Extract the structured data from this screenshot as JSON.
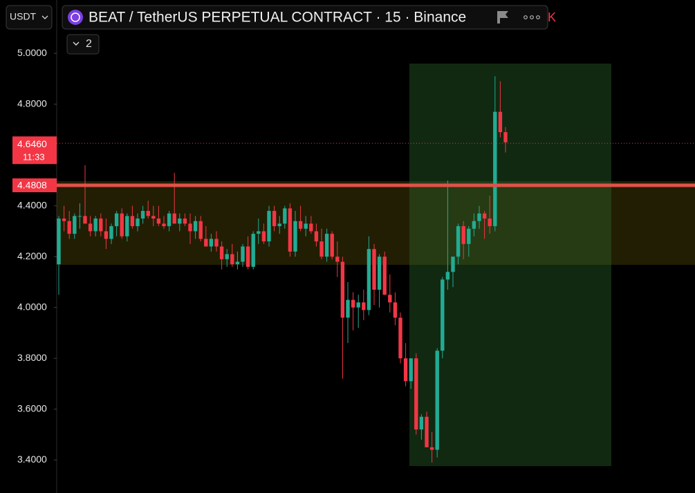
{
  "ui": {
    "quote_currency": "USDT",
    "symbol_title": "BEAT / TetherUS PERPETUAL CONTRACT · 15 · Binance",
    "indicator_count": "2",
    "cut_text": "K",
    "countdown": "11:33"
  },
  "chart_data": {
    "type": "candlestick",
    "ylim": [
      3.27,
      5.21
    ],
    "yticks": [
      {
        "value": 3.4,
        "label": "3.4000"
      },
      {
        "value": 3.6,
        "label": "3.6000"
      },
      {
        "value": 3.8,
        "label": "3.8000"
      },
      {
        "value": 4.0,
        "label": "4.0000"
      },
      {
        "value": 4.2,
        "label": "4.2000"
      },
      {
        "value": 4.4,
        "label": "4.4000"
      },
      {
        "value": 4.8,
        "label": "4.8000"
      },
      {
        "value": 5.0,
        "label": "5.0000"
      }
    ],
    "up_color": "#22ab94",
    "down_color": "#f23645",
    "last_price": {
      "value": 4.646,
      "label": "4.6460"
    },
    "level_line": {
      "value": 4.4808,
      "label": "4.4808"
    },
    "open": [
      4.17,
      4.35,
      4.34,
      4.29,
      4.36,
      4.36,
      4.33,
      4.3,
      4.35,
      4.3,
      4.27,
      4.32,
      4.37,
      4.28,
      4.36,
      4.32,
      4.35,
      4.38,
      4.36,
      4.35,
      4.33,
      4.32,
      4.37,
      4.33,
      4.35,
      4.33,
      4.3,
      4.34,
      4.27,
      4.24,
      4.27,
      4.24,
      4.19,
      4.21,
      4.17,
      4.18,
      4.24,
      4.16,
      4.29,
      4.3,
      4.26,
      4.38,
      4.32,
      4.33,
      4.39,
      4.22,
      4.34,
      4.31,
      4.33,
      4.3,
      4.26,
      4.2,
      4.29,
      4.2,
      4.18,
      3.96,
      4.03,
      4.0,
      4.02,
      3.99,
      4.23,
      4.07,
      4.2,
      4.05,
      4.02,
      3.96,
      3.8,
      3.71,
      3.8,
      3.52,
      3.57,
      3.45,
      3.44,
      3.83,
      4.11,
      4.14,
      4.2,
      4.32,
      4.25,
      4.31,
      4.34,
      4.37,
      4.35,
      4.32,
      4.77,
      4.69
    ],
    "high": [
      4.36,
      4.4,
      4.38,
      4.37,
      4.41,
      4.56,
      4.36,
      4.36,
      4.37,
      4.35,
      4.33,
      4.38,
      4.39,
      4.37,
      4.4,
      4.37,
      4.4,
      4.42,
      4.4,
      4.4,
      4.36,
      4.38,
      4.53,
      4.37,
      4.37,
      4.37,
      4.36,
      4.36,
      4.32,
      4.29,
      4.3,
      4.26,
      4.23,
      4.25,
      4.22,
      4.25,
      4.28,
      4.3,
      4.35,
      4.33,
      4.4,
      4.4,
      4.36,
      4.4,
      4.41,
      4.38,
      4.4,
      4.36,
      4.36,
      4.33,
      4.31,
      4.31,
      4.3,
      4.26,
      4.2,
      4.1,
      4.06,
      4.05,
      4.07,
      4.28,
      4.25,
      4.21,
      4.22,
      4.13,
      4.06,
      3.98,
      3.86,
      3.8,
      3.82,
      3.58,
      3.59,
      3.51,
      3.84,
      4.12,
      4.5,
      4.2,
      4.33,
      4.34,
      4.32,
      4.37,
      4.4,
      4.38,
      4.44,
      4.91,
      4.89,
      4.71
    ],
    "low": [
      4.05,
      4.3,
      4.27,
      4.27,
      4.31,
      4.33,
      4.28,
      4.28,
      4.28,
      4.23,
      4.25,
      4.28,
      4.27,
      4.26,
      4.31,
      4.3,
      4.33,
      4.35,
      4.32,
      4.32,
      4.31,
      4.3,
      4.33,
      4.3,
      4.32,
      4.25,
      4.27,
      4.26,
      4.24,
      4.22,
      4.22,
      4.15,
      4.16,
      4.16,
      4.15,
      4.16,
      4.15,
      4.15,
      4.25,
      4.25,
      4.24,
      4.3,
      4.29,
      4.31,
      4.2,
      4.2,
      4.3,
      4.28,
      4.29,
      4.24,
      4.19,
      4.18,
      4.19,
      4.12,
      3.72,
      3.86,
      3.91,
      3.92,
      3.95,
      3.97,
      4.01,
      4.0,
      4.05,
      3.98,
      3.93,
      3.78,
      3.69,
      3.68,
      3.5,
      3.48,
      3.45,
      3.39,
      3.41,
      3.8,
      4.07,
      4.08,
      4.17,
      4.19,
      4.2,
      4.28,
      4.31,
      4.27,
      4.29,
      4.3,
      4.67,
      4.61
    ],
    "close": [
      4.35,
      4.34,
      4.29,
      4.36,
      4.36,
      4.33,
      4.3,
      4.35,
      4.3,
      4.27,
      4.32,
      4.37,
      4.28,
      4.36,
      4.32,
      4.35,
      4.38,
      4.36,
      4.35,
      4.33,
      4.32,
      4.37,
      4.33,
      4.35,
      4.33,
      4.3,
      4.34,
      4.27,
      4.24,
      4.27,
      4.24,
      4.19,
      4.21,
      4.17,
      4.18,
      4.24,
      4.16,
      4.29,
      4.3,
      4.26,
      4.38,
      4.32,
      4.33,
      4.39,
      4.22,
      4.34,
      4.31,
      4.33,
      4.3,
      4.26,
      4.2,
      4.29,
      4.2,
      4.18,
      3.96,
      4.03,
      4.0,
      4.02,
      3.99,
      4.23,
      4.07,
      4.2,
      4.05,
      4.02,
      3.96,
      3.8,
      3.71,
      3.8,
      3.52,
      3.57,
      3.45,
      3.44,
      3.83,
      4.11,
      4.14,
      4.2,
      4.32,
      4.25,
      4.31,
      4.34,
      4.37,
      4.35,
      4.32,
      4.77,
      4.69,
      4.65
    ]
  }
}
